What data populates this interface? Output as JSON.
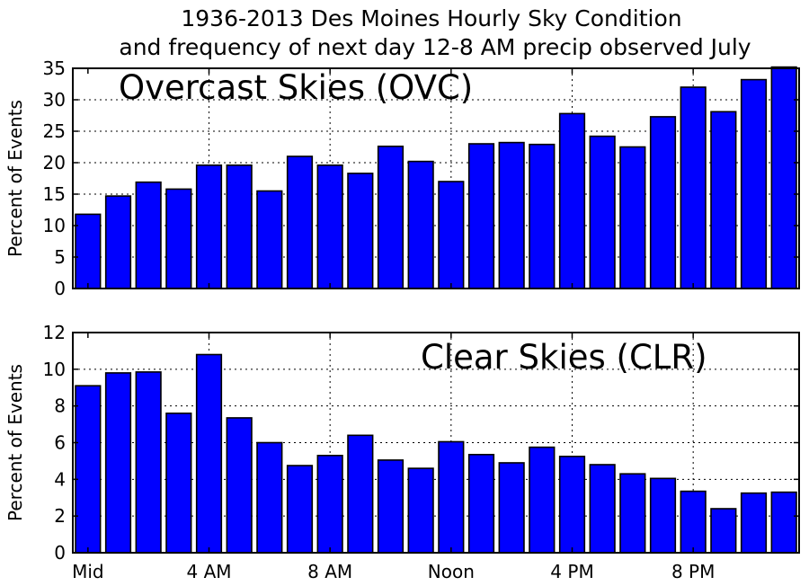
{
  "title_lines": [
    "1936-2013 Des Moines Hourly Sky Condition",
    "and frequency of next day 12-8 AM precip observed July"
  ],
  "bar_color": "#0000ff",
  "chart_data": [
    {
      "type": "bar",
      "annotation": "Overcast Skies (OVC)",
      "ylabel": "Percent of Events",
      "ylim": [
        0,
        35
      ],
      "yticks": [
        0,
        5,
        10,
        15,
        20,
        25,
        30,
        35
      ],
      "grid": true,
      "x": [
        0,
        1,
        2,
        3,
        4,
        5,
        6,
        7,
        8,
        9,
        10,
        11,
        12,
        13,
        14,
        15,
        16,
        17,
        18,
        19,
        20,
        21,
        22,
        23
      ],
      "values": [
        11.8,
        14.7,
        16.9,
        15.8,
        19.6,
        19.6,
        15.5,
        21.0,
        19.6,
        18.3,
        22.6,
        20.2,
        17.0,
        23.0,
        23.2,
        22.9,
        27.8,
        24.2,
        22.5,
        27.3,
        32.0,
        28.1,
        33.2,
        35.2
      ],
      "xticks": [],
      "xticklabels": []
    },
    {
      "type": "bar",
      "annotation": "Clear Skies (CLR)",
      "ylabel": "Percent of Events",
      "ylim": [
        0,
        12
      ],
      "yticks": [
        0,
        2,
        4,
        6,
        8,
        10,
        12
      ],
      "grid": true,
      "x": [
        0,
        1,
        2,
        3,
        4,
        5,
        6,
        7,
        8,
        9,
        10,
        11,
        12,
        13,
        14,
        15,
        16,
        17,
        18,
        19,
        20,
        21,
        22,
        23
      ],
      "values": [
        9.1,
        9.8,
        9.85,
        7.6,
        10.8,
        7.35,
        6.0,
        4.75,
        5.3,
        6.4,
        5.05,
        4.6,
        6.05,
        5.35,
        4.9,
        5.75,
        5.25,
        4.8,
        4.3,
        4.05,
        3.35,
        2.4,
        3.25,
        3.3
      ],
      "xticks": [
        0,
        4,
        8,
        12,
        16,
        20
      ],
      "xticklabels": [
        "Mid",
        "4 AM",
        "8 AM",
        "Noon",
        "4 PM",
        "8 PM"
      ]
    }
  ]
}
